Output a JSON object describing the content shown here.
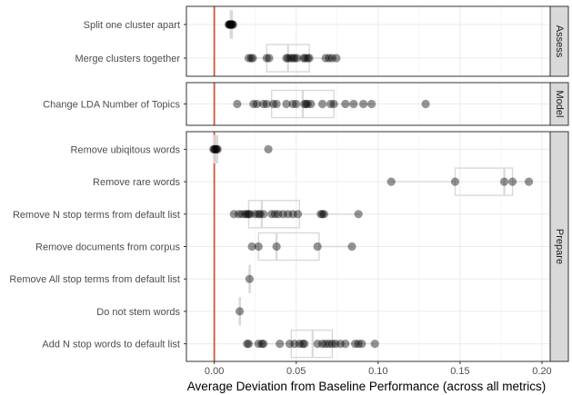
{
  "chart_data": {
    "type": "scatter",
    "title": "",
    "xlabel": "Average Deviation from Baseline Performance (across all metrics)",
    "ylabel": "",
    "xlim": [
      -0.017,
      0.205
    ],
    "x_ticks": [
      0.0,
      0.05,
      0.1,
      0.15,
      0.2
    ],
    "x_tick_labels": [
      "0.00",
      "0.05",
      "0.10",
      "0.15",
      "0.20"
    ],
    "reference_line_x": 0,
    "reference_line_color": "#d2553a",
    "grid": true,
    "point_color": "#000000",
    "box_color": "#d9d9d9",
    "panels": [
      {
        "name": "Assess",
        "rows": [
          {
            "label": "Split one cluster apart",
            "box": [
              0.0093,
              0.0098,
              0.0105,
              0.011,
              0.0118
            ],
            "points": [
              0.0088,
              0.0092,
              0.0095,
              0.0098,
              0.01,
              0.0103,
              0.0106,
              0.011,
              0.0115
            ]
          },
          {
            "label": "Merge clusters together",
            "box": [
              0.021,
              0.032,
              0.045,
              0.058,
              0.074
            ],
            "points": [
              0.021,
              0.0225,
              0.0235,
              0.032,
              0.0335,
              0.044,
              0.045,
              0.0465,
              0.048,
              0.049,
              0.0505,
              0.0545,
              0.0555,
              0.057,
              0.058,
              0.068,
              0.07,
              0.072,
              0.0745
            ]
          }
        ]
      },
      {
        "name": "Model",
        "rows": [
          {
            "label": "Change LDA Number of Topics",
            "box": [
              0.014,
              0.035,
              0.054,
              0.073,
              0.096
            ],
            "points": [
              0.014,
              0.024,
              0.026,
              0.03,
              0.032,
              0.036,
              0.038,
              0.044,
              0.048,
              0.05,
              0.055,
              0.056,
              0.057,
              0.059,
              0.066,
              0.071,
              0.073,
              0.08,
              0.085,
              0.091,
              0.096,
              0.129
            ]
          }
        ]
      },
      {
        "name": "Prepare",
        "rows": [
          {
            "label": "Remove ubiqitous words",
            "box": [
              -0.0005,
              0.0,
              0.001,
              0.002,
              0.003
            ],
            "points": [
              -0.0005,
              0.0,
              0.0005,
              0.001,
              0.0015,
              0.002,
              0.033
            ]
          },
          {
            "label": "Remove rare words",
            "box": [
              0.108,
              0.147,
              0.177,
              0.182,
              0.192
            ],
            "points": [
              0.108,
              0.147,
              0.177,
              0.182,
              0.192
            ]
          },
          {
            "label": "Remove N stop terms from default list",
            "box": [
              0.011,
              0.021,
              0.029,
              0.052,
              0.089
            ],
            "points": [
              0.012,
              0.015,
              0.017,
              0.019,
              0.02,
              0.021,
              0.022,
              0.025,
              0.027,
              0.028,
              0.03,
              0.035,
              0.037,
              0.039,
              0.042,
              0.045,
              0.048,
              0.051,
              0.065,
              0.066,
              0.067,
              0.088
            ]
          },
          {
            "label": "Remove documents from corpus",
            "box": [
              0.023,
              0.027,
              0.038,
              0.064,
              0.084
            ],
            "points": [
              0.023,
              0.027,
              0.038,
              0.063,
              0.084
            ]
          },
          {
            "label": "Remove All stop terms from default list",
            "box": [
              0.0215,
              0.0215,
              0.0215,
              0.0215,
              0.0215
            ],
            "points": [
              0.0215
            ]
          },
          {
            "label": "Do not stem words",
            "box": [
              0.0155,
              0.0155,
              0.0155,
              0.0155,
              0.0155
            ],
            "points": [
              0.0155
            ]
          },
          {
            "label": "Add N stop words to default list",
            "box": [
              0.02,
              0.047,
              0.06,
              0.072,
              0.098
            ],
            "points": [
              0.02,
              0.021,
              0.027,
              0.029,
              0.03,
              0.04,
              0.046,
              0.049,
              0.052,
              0.054,
              0.055,
              0.063,
              0.066,
              0.068,
              0.07,
              0.072,
              0.074,
              0.077,
              0.08,
              0.086,
              0.088,
              0.09,
              0.098
            ]
          }
        ]
      }
    ]
  }
}
